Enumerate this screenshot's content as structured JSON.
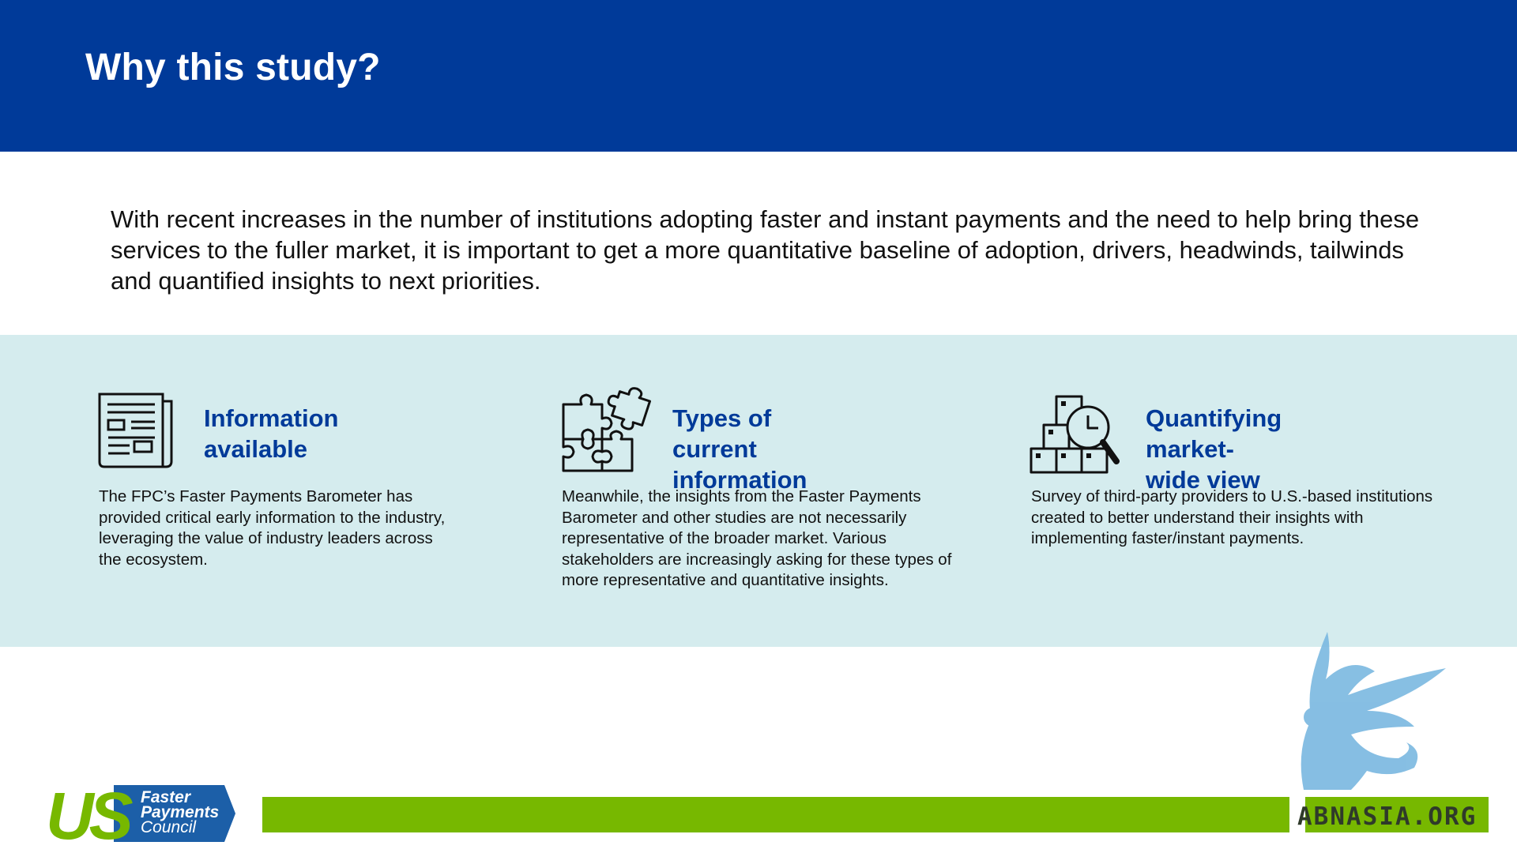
{
  "header": {
    "title": "Why this study?"
  },
  "intro": {
    "text": "With recent increases in the number of institutions adopting faster and instant payments and the need to help bring these services to the fuller market, it is important to get a more quantitative baseline of adoption, drivers, headwinds, tailwinds and quantified insights to next priorities."
  },
  "columns": [
    {
      "icon": "newspaper-icon",
      "title_line1": "Information",
      "title_line2": "available",
      "body": "The FPC’s Faster Payments Barometer has provided critical early information to the industry, leveraging the value of industry leaders across the ecosystem."
    },
    {
      "icon": "puzzle-icon",
      "title_line1": "Types of current",
      "title_line2": "information",
      "body": "Meanwhile, the insights from the Faster Payments Barometer and other studies are not necessarily representative of the broader market. Various stakeholders are increasingly asking for these types of more representative and quantitative insights."
    },
    {
      "icon": "boxes-magnifier-icon",
      "title_line1": "Quantifying",
      "title_line2": "market-wide view",
      "body": "Survey of third-party providers to U.S.-based institutions created to better understand their insights with implementing faster/instant payments."
    }
  ],
  "footer": {
    "logo_letters": "US",
    "logo_line1": "Faster",
    "logo_line2": "Payments",
    "logo_line3": "Council",
    "watermark_text": "ABNASIA.ORG"
  },
  "colors": {
    "header_blue": "#003a99",
    "band_teal": "#d5ecee",
    "accent_green": "#77b800",
    "logo_blue": "#1c5fa8",
    "watermark_blue": "#7ab8e0"
  }
}
